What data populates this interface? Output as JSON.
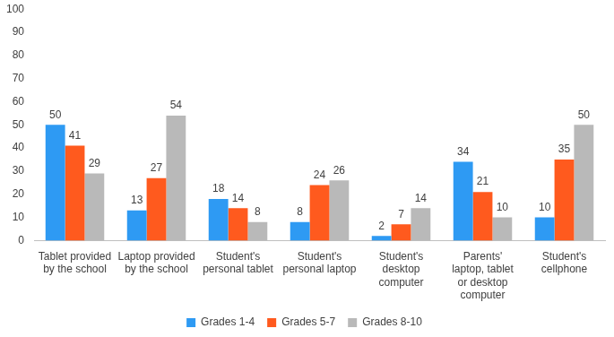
{
  "chart_data": {
    "type": "bar",
    "categories": [
      "Tablet provided by the school",
      "Laptop provided by the school",
      "Student's personal tablet",
      "Student's personal laptop",
      "Student's desktop computer",
      "Parents' laptop, tablet or desktop computer",
      "Student's cellphone"
    ],
    "series": [
      {
        "name": "Grades 1-4",
        "color": "#2e9af3",
        "values": [
          50,
          13,
          18,
          8,
          2,
          34,
          10
        ]
      },
      {
        "name": "Grades 5-7",
        "color": "#ff5a1e",
        "values": [
          41,
          27,
          14,
          24,
          7,
          21,
          35
        ]
      },
      {
        "name": "Grades 8-10",
        "color": "#b9b9b9",
        "values": [
          29,
          54,
          8,
          26,
          14,
          10,
          50
        ]
      }
    ],
    "ylim": [
      0,
      100
    ],
    "yticks": [
      0,
      10,
      20,
      30,
      40,
      50,
      60,
      70,
      80,
      90,
      100
    ],
    "grid": false,
    "legend": "bottom",
    "data_labels": true
  }
}
